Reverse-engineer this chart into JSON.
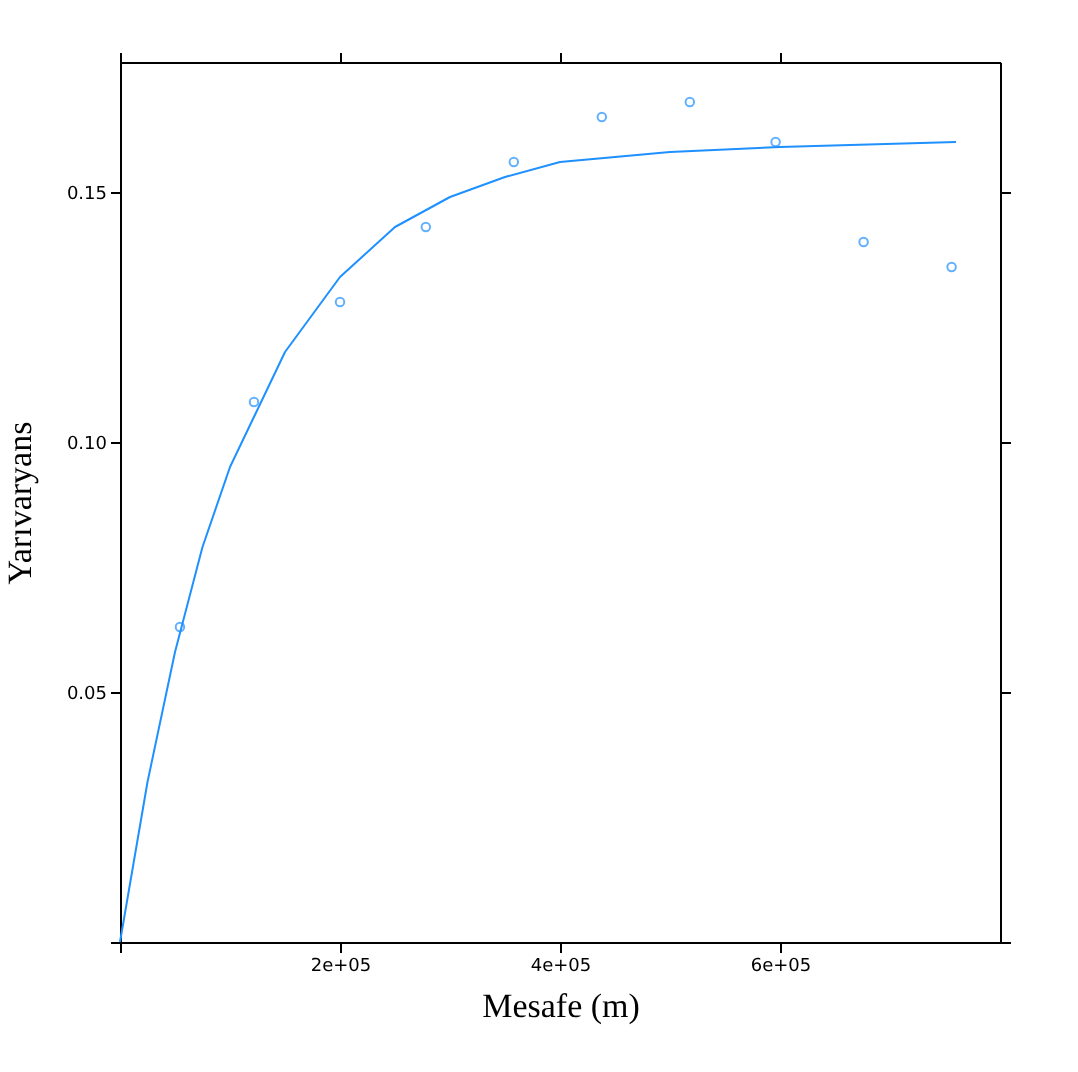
{
  "chart_data": {
    "type": "scatter",
    "xlabel": "Mesafe (m)",
    "ylabel": "Yarıvaryans",
    "xlim": [
      0,
      800000
    ],
    "ylim": [
      0,
      0.176
    ],
    "xticks": [
      {
        "value": 0,
        "label": null
      },
      {
        "value": 200000,
        "label": "2e+05"
      },
      {
        "value": 400000,
        "label": "4e+05"
      },
      {
        "value": 600000,
        "label": "6e+05"
      }
    ],
    "yticks": [
      {
        "value": 0,
        "label": null
      },
      {
        "value": 0.05,
        "label": "0.05"
      },
      {
        "value": 0.1,
        "label": "0.10"
      },
      {
        "value": 0.15,
        "label": "0.15"
      }
    ],
    "grid": false,
    "series": [
      {
        "color": "#1e90ff",
        "marker": "circle",
        "x": [
          54500,
          121800,
          200000,
          278000,
          358000,
          438000,
          518000,
          596000,
          676000,
          756000
        ],
        "values": [
          0.063,
          0.108,
          0.128,
          0.143,
          0.156,
          0.165,
          0.168,
          0.16,
          0.14,
          0.135
        ]
      },
      {
        "type": "line",
        "color": "#1e90ff",
        "marker": "none",
        "line_style": "solid",
        "x": [
          0,
          25000,
          50000,
          75000,
          100000,
          150000,
          200000,
          250000,
          300000,
          350000,
          400000,
          500000,
          600000,
          760000
        ],
        "values": [
          0,
          0.032,
          0.058,
          0.079,
          0.095,
          0.118,
          0.133,
          0.143,
          0.149,
          0.153,
          0.156,
          0.158,
          0.159,
          0.16
        ]
      }
    ]
  }
}
